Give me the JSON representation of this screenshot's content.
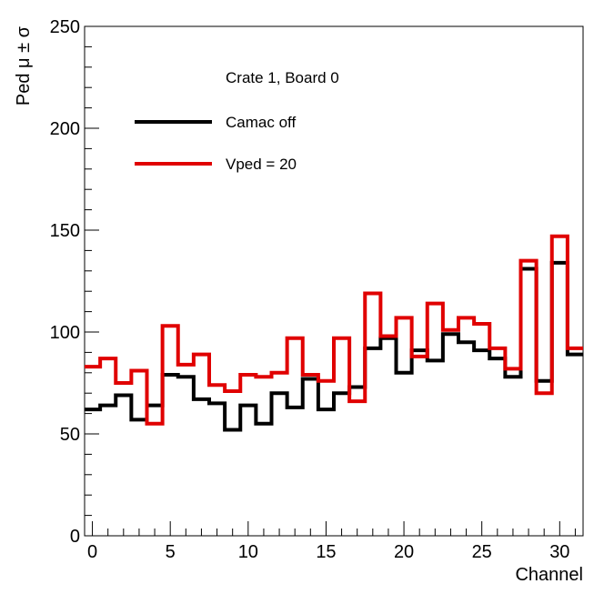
{
  "chart_data": {
    "type": "step",
    "title": "",
    "legend_header": "Crate 1, Board 0",
    "xlabel": "Channel",
    "ylabel": "Ped μ ± σ",
    "xlim": [
      -0.5,
      31.5
    ],
    "ylim": [
      0,
      250
    ],
    "x_ticks": [
      0,
      5,
      10,
      15,
      20,
      25,
      30
    ],
    "y_ticks": [
      0,
      50,
      100,
      150,
      200,
      250
    ],
    "grid": false,
    "legend_position": "top-left",
    "x": [
      0,
      1,
      2,
      3,
      4,
      5,
      6,
      7,
      8,
      9,
      10,
      11,
      12,
      13,
      14,
      15,
      16,
      17,
      18,
      19,
      20,
      21,
      22,
      23,
      24,
      25,
      26,
      27,
      28,
      29,
      30,
      31
    ],
    "series": [
      {
        "name": "Camac off",
        "color": "#000000",
        "values": [
          62,
          64,
          69,
          57,
          64,
          79,
          78,
          67,
          65,
          52,
          64,
          55,
          70,
          63,
          77,
          62,
          70,
          73,
          92,
          97,
          80,
          91,
          86,
          99,
          95,
          91,
          87,
          78,
          131,
          76,
          134,
          89
        ]
      },
      {
        "name": "Vped = 20",
        "color": "#e00000",
        "values": [
          83,
          87,
          75,
          81,
          55,
          103,
          84,
          89,
          74,
          71,
          79,
          78,
          80,
          97,
          79,
          76,
          97,
          66,
          119,
          98,
          107,
          88,
          114,
          101,
          107,
          104,
          92,
          82,
          135,
          70,
          147,
          92
        ]
      }
    ]
  }
}
